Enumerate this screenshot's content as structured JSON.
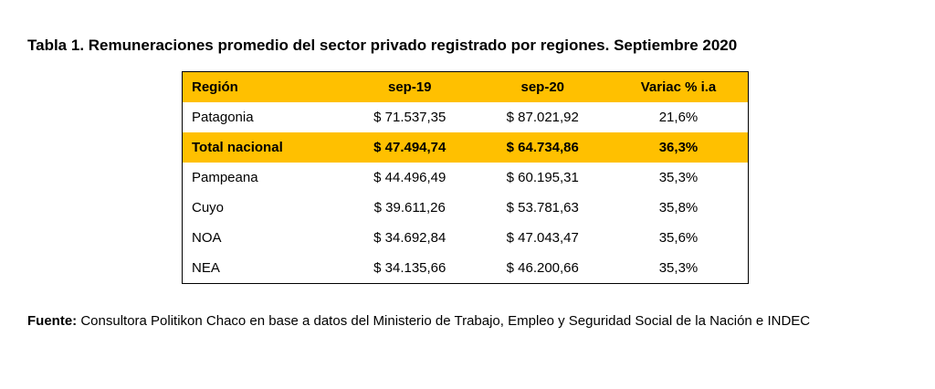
{
  "title": "Tabla 1. Remuneraciones promedio del sector privado registrado por regiones. Septiembre 2020",
  "table": {
    "headers": [
      "Región",
      "sep-19",
      "sep-20",
      "Variac % i.a"
    ],
    "highlight_color": "#FFC000",
    "rows": [
      {
        "region": "Patagonia",
        "sep19": "$ 71.537,35",
        "sep20": "$ 87.021,92",
        "var": "21,6%",
        "highlight": false
      },
      {
        "region": "Total nacional",
        "sep19": "$ 47.494,74",
        "sep20": "$ 64.734,86",
        "var": "36,3%",
        "highlight": true
      },
      {
        "region": "Pampeana",
        "sep19": "$ 44.496,49",
        "sep20": "$ 60.195,31",
        "var": "35,3%",
        "highlight": false
      },
      {
        "region": "Cuyo",
        "sep19": "$ 39.611,26",
        "sep20": "$ 53.781,63",
        "var": "35,8%",
        "highlight": false
      },
      {
        "region": "NOA",
        "sep19": "$ 34.692,84",
        "sep20": "$ 47.043,47",
        "var": "35,6%",
        "highlight": false
      },
      {
        "region": "NEA",
        "sep19": "$ 34.135,66",
        "sep20": "$ 46.200,66",
        "var": "35,3%",
        "highlight": false
      }
    ]
  },
  "source": {
    "label": "Fuente:",
    "text": " Consultora Politikon Chaco en base a datos del Ministerio de Trabajo, Empleo y Seguridad Social de la Nación e INDEC"
  }
}
